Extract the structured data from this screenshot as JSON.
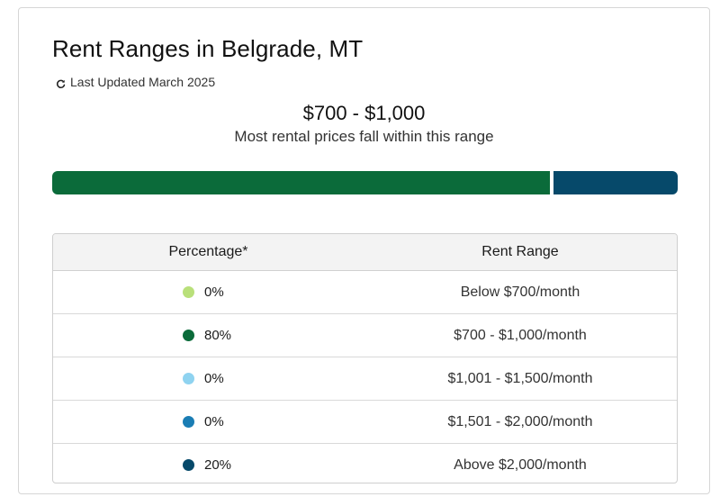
{
  "header": {
    "title": "Rent Ranges in Belgrade, MT",
    "last_updated": "Last Updated March 2025"
  },
  "summary": {
    "range": "$700 - $1,000",
    "caption": "Most rental prices fall within this range"
  },
  "distribution_bar": {
    "segments": [
      {
        "label": "Below $700/month",
        "percent": 0,
        "color": "#b9e07a"
      },
      {
        "label": "$700 - $1,000/month",
        "percent": 80,
        "color": "#0b6b3a"
      },
      {
        "label": "$1,001 - $1,500/month",
        "percent": 0,
        "color": "#8fd3f0"
      },
      {
        "label": "$1,501 - $2,000/month",
        "percent": 0,
        "color": "#1a7db4"
      },
      {
        "label": "Above $2,000/month",
        "percent": 20,
        "color": "#06496a"
      }
    ]
  },
  "table": {
    "headers": {
      "percentage": "Percentage*",
      "rent_range": "Rent Range"
    },
    "rows": [
      {
        "percent": "0%",
        "range": "Below $700/month",
        "color": "#b9e07a"
      },
      {
        "percent": "80%",
        "range": "$700 - $1,000/month",
        "color": "#0b6b3a"
      },
      {
        "percent": "0%",
        "range": "$1,001 - $1,500/month",
        "color": "#8fd3f0"
      },
      {
        "percent": "0%",
        "range": "$1,501 - $2,000/month",
        "color": "#1a7db4"
      },
      {
        "percent": "20%",
        "range": "Above $2,000/month",
        "color": "#06496a"
      }
    ]
  }
}
